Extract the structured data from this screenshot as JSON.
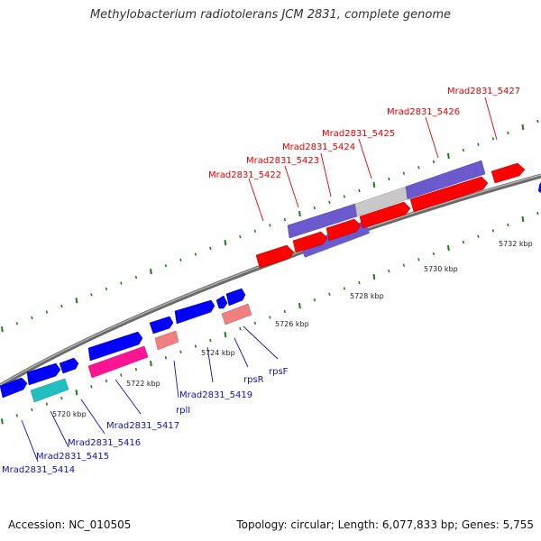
{
  "title": "Methylobacterium radiotolerans JCM 2831, complete genome",
  "accession": "Accession: NC_010505",
  "summary": "Topology: circular; Length: 6,077,833 bp; Genes: 5,755",
  "colors": {
    "backbone": "#8a8a8a",
    "tick": "#1e7a1e",
    "red": "#ff0000",
    "blue": "#0000ff",
    "slate": "#6a5acd",
    "gray": "#c8c8c8",
    "pink": "#ff1493",
    "salmon": "#f08080",
    "cyan": "#20c0c0"
  },
  "scale_labels": [
    "5720 kbp",
    "5722 kbp",
    "5724 kbp",
    "5726 kbp",
    "5728 kbp",
    "5730 kbp",
    "5732 kbp"
  ],
  "gene_labels": [
    {
      "name": "Mrad2831_5427",
      "color": "red"
    },
    {
      "name": "Mrad2831_5426",
      "color": "red"
    },
    {
      "name": "Mrad2831_5425",
      "color": "red"
    },
    {
      "name": "Mrad2831_5424",
      "color": "red"
    },
    {
      "name": "Mrad2831_5423",
      "color": "red"
    },
    {
      "name": "Mrad2831_5422",
      "color": "red"
    },
    {
      "name": "rpsF",
      "color": "blue"
    },
    {
      "name": "rpsR",
      "color": "blue"
    },
    {
      "name": "Mrad2831_5419",
      "color": "blue"
    },
    {
      "name": "rplI",
      "color": "blue"
    },
    {
      "name": "Mrad2831_5417",
      "color": "blue"
    },
    {
      "name": "Mrad2831_5416",
      "color": "blue"
    },
    {
      "name": "Mrad2831_5415",
      "color": "blue"
    },
    {
      "name": "Mrad2831_5414",
      "color": "blue"
    }
  ]
}
